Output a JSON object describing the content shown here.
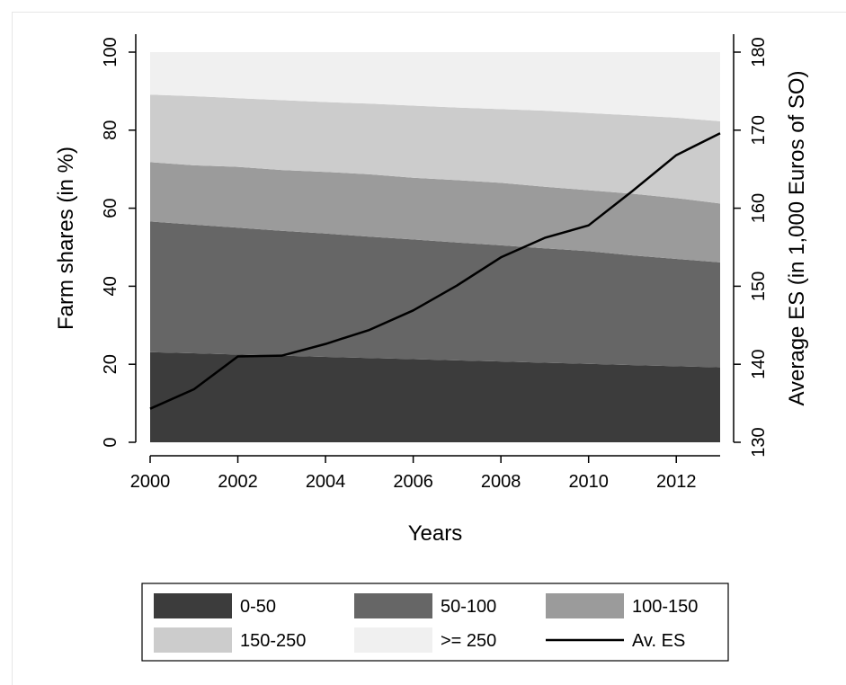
{
  "chart_data": {
    "type": "area",
    "title": "",
    "xlabel": "Years",
    "ylabel": "Farm shares (in %)",
    "y2label": "Average ES (in 1,000 Euros of SO)",
    "xlim": [
      2000,
      2013
    ],
    "ylim": [
      0,
      100
    ],
    "y2lim": [
      130,
      180
    ],
    "x": [
      2000,
      2001,
      2002,
      2003,
      2004,
      2005,
      2006,
      2007,
      2008,
      2009,
      2010,
      2011,
      2012,
      2013
    ],
    "x_ticks": [
      2000,
      2002,
      2004,
      2006,
      2008,
      2010,
      2012
    ],
    "y_ticks": [
      0,
      20,
      40,
      60,
      80,
      100
    ],
    "y2_ticks": [
      130,
      140,
      150,
      160,
      170,
      180
    ],
    "stacked": true,
    "series": [
      {
        "name": "0-50",
        "color": "#3c3c3c",
        "values": [
          23.1,
          22.8,
          22.5,
          22.2,
          21.9,
          21.6,
          21.3,
          21.0,
          20.7,
          20.4,
          20.1,
          19.8,
          19.5,
          19.2
        ]
      },
      {
        "name": "50-100",
        "color": "#666666",
        "values": [
          33.5,
          33.0,
          32.5,
          32.0,
          31.6,
          31.1,
          30.7,
          30.2,
          29.8,
          29.3,
          28.9,
          28.1,
          27.5,
          26.9
        ]
      },
      {
        "name": "100-150",
        "color": "#9b9b9b",
        "values": [
          15.2,
          15.2,
          15.6,
          15.6,
          15.8,
          16.0,
          15.8,
          16.0,
          16.0,
          15.8,
          15.6,
          15.8,
          15.6,
          15.1
        ]
      },
      {
        "name": "150-250",
        "color": "#cccccc",
        "values": [
          17.3,
          17.7,
          17.6,
          17.9,
          17.9,
          18.1,
          18.5,
          18.6,
          18.9,
          19.5,
          19.8,
          20.1,
          20.6,
          21.1
        ]
      },
      {
        "name": ">= 250",
        "color": "#f0f0f0",
        "values": [
          10.9,
          11.3,
          11.8,
          12.3,
          12.8,
          13.2,
          13.7,
          14.2,
          14.6,
          15.0,
          15.6,
          16.2,
          16.8,
          17.7
        ]
      }
    ],
    "line_series": {
      "name": "Av. ES",
      "axis": "right",
      "color": "#000000",
      "values": [
        134.3,
        136.8,
        141.0,
        141.1,
        142.6,
        144.4,
        146.9,
        150.1,
        153.7,
        156.2,
        157.8,
        162.2,
        166.8,
        169.6
      ]
    },
    "legend": {
      "position": "bottom",
      "entries": [
        "0-50",
        "50-100",
        "100-150",
        "150-250",
        ">= 250",
        "Av. ES"
      ]
    }
  }
}
